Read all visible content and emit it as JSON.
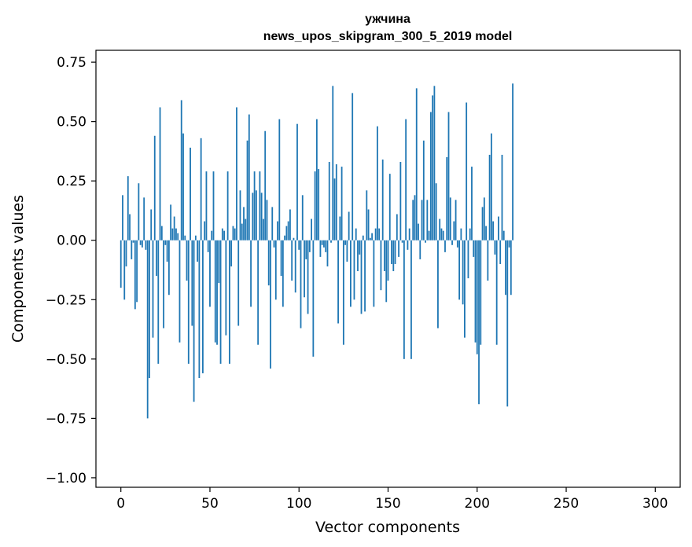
{
  "chart_data": {
    "type": "bar",
    "title": "ужчина",
    "subtitle": "news_upos_skipgram_300_5_2019 model",
    "xlabel": "Vector components",
    "ylabel": "Components values",
    "xlim": [
      -14,
      314
    ],
    "ylim": [
      -1.04,
      0.8
    ],
    "xticks": [
      0,
      50,
      100,
      150,
      200,
      250,
      300
    ],
    "xtick_labels": [
      "0",
      "50",
      "100",
      "150",
      "200",
      "250",
      "300"
    ],
    "yticks": [
      0.75,
      0.5,
      0.25,
      0.0,
      -0.25,
      -0.5,
      -0.75,
      -1.0
    ],
    "ytick_labels": [
      "0.75",
      "0.50",
      "0.25",
      "0.00",
      "−0.25",
      "−0.50",
      "−0.75",
      "−1.00"
    ],
    "bar_color": "#1f77b4",
    "grid": false,
    "values": [
      -0.2,
      0.19,
      -0.25,
      -0.11,
      0.27,
      0.11,
      -0.08,
      -0.01,
      -0.29,
      -0.26,
      0.24,
      -0.02,
      -0.03,
      0.18,
      -0.04,
      -0.75,
      -0.58,
      0.13,
      -0.41,
      0.44,
      -0.15,
      -0.52,
      0.56,
      0.06,
      -0.37,
      -0.02,
      -0.09,
      -0.23,
      0.15,
      0.05,
      0.1,
      0.05,
      0.03,
      -0.43,
      0.59,
      0.45,
      0.02,
      -0.17,
      -0.52,
      0.39,
      -0.36,
      -0.68,
      0.02,
      -0.09,
      -0.58,
      0.43,
      -0.56,
      0.08,
      0.29,
      -0.05,
      -0.28,
      0.04,
      0.29,
      -0.43,
      -0.44,
      -0.18,
      -0.52,
      0.05,
      0.04,
      -0.4,
      0.29,
      -0.52,
      -0.11,
      0.06,
      0.05,
      0.56,
      -0.36,
      0.21,
      0.07,
      0.14,
      0.09,
      0.42,
      0.53,
      -0.28,
      0.2,
      0.29,
      0.21,
      -0.44,
      0.29,
      0.2,
      0.09,
      0.46,
      0.17,
      -0.19,
      -0.54,
      0.14,
      -0.03,
      -0.25,
      0.08,
      0.51,
      -0.15,
      -0.28,
      0.02,
      0.06,
      0.08,
      0.13,
      -0.17,
      0.01,
      -0.22,
      0.49,
      -0.04,
      -0.37,
      0.19,
      -0.24,
      -0.08,
      -0.31,
      -0.05,
      0.09,
      -0.49,
      0.29,
      0.51,
      0.3,
      -0.07,
      -0.02,
      -0.03,
      -0.05,
      -0.11,
      0.33,
      -0.01,
      0.65,
      0.26,
      0.32,
      -0.35,
      0.1,
      0.31,
      -0.44,
      -0.02,
      -0.09,
      0.12,
      -0.28,
      0.62,
      -0.25,
      0.05,
      -0.13,
      -0.06,
      -0.31,
      0.02,
      -0.3,
      0.21,
      0.13,
      0.01,
      0.03,
      -0.28,
      0.05,
      0.48,
      0.05,
      -0.21,
      0.34,
      -0.13,
      -0.26,
      -0.17,
      0.28,
      -0.1,
      -0.13,
      -0.1,
      0.11,
      -0.07,
      0.33,
      -0.01,
      -0.5,
      0.51,
      -0.04,
      0.05,
      -0.5,
      0.17,
      0.19,
      0.64,
      0.07,
      -0.08,
      0.17,
      0.42,
      -0.01,
      0.17,
      0.04,
      0.54,
      0.61,
      0.65,
      0.24,
      -0.37,
      0.09,
      0.05,
      0.04,
      -0.05,
      0.35,
      0.54,
      0.18,
      -0.02,
      0.08,
      0.17,
      -0.03,
      -0.25,
      0.05,
      -0.27,
      -0.41,
      0.58,
      -0.16,
      0.05,
      0.31,
      -0.07,
      -0.43,
      -0.48,
      -0.69,
      -0.44,
      0.14,
      0.18,
      0.06,
      -0.17,
      0.36,
      0.45,
      0.08,
      -0.06,
      -0.44,
      0.1,
      -0.1,
      0.36,
      0.04,
      -0.23,
      -0.7,
      -0.03,
      -0.23,
      0.66
    ]
  }
}
